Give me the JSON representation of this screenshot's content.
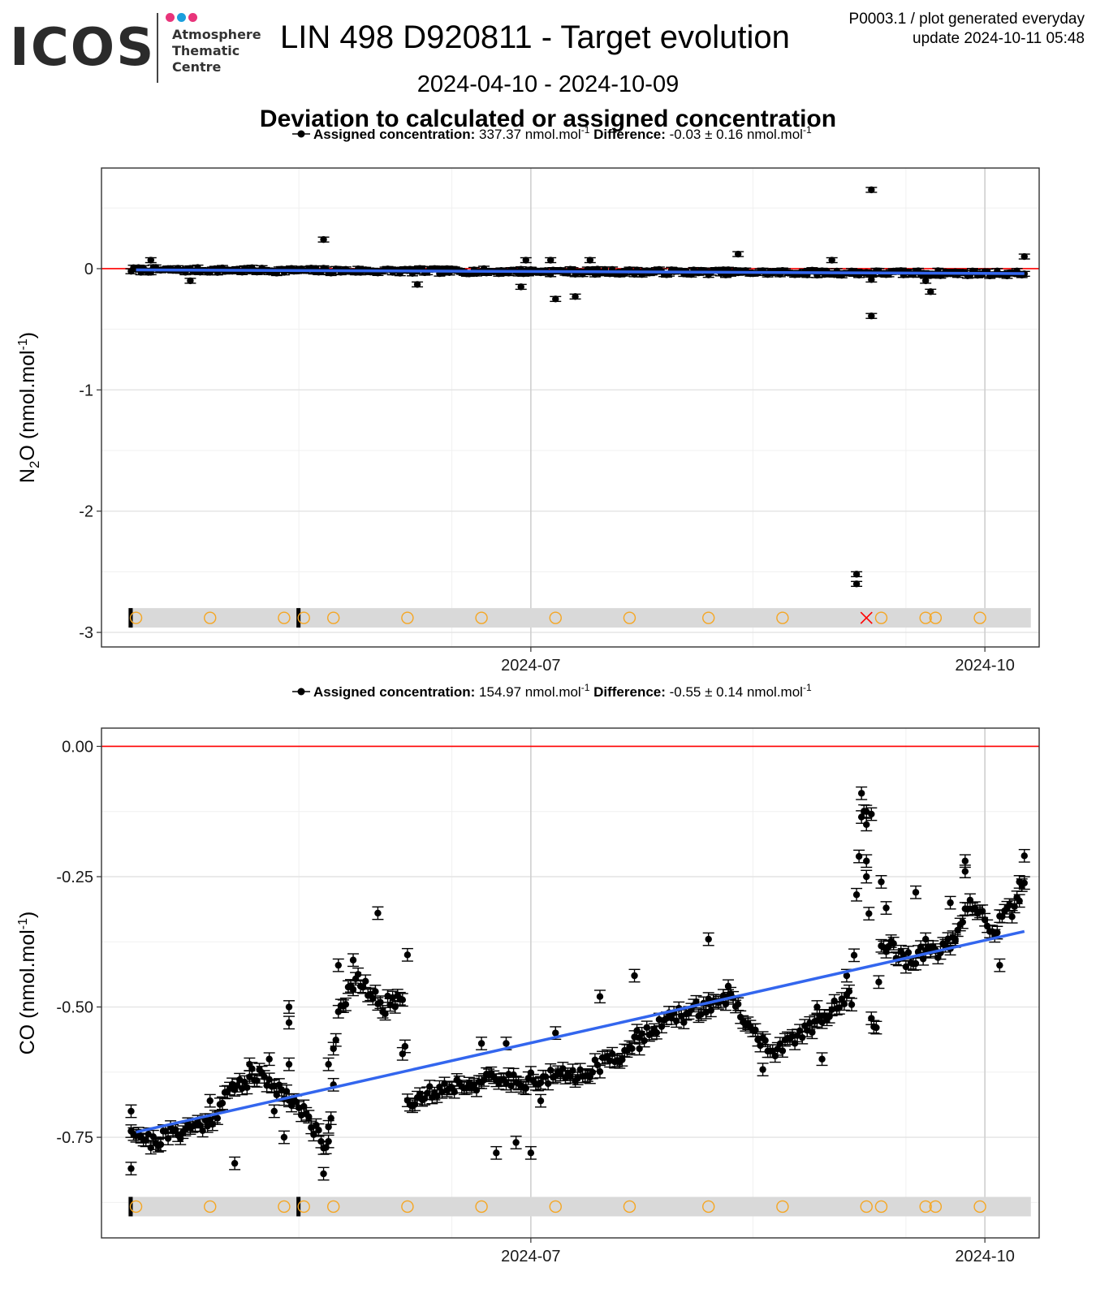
{
  "header": {
    "logo_word": "ICOS",
    "logo_lines": [
      "Atmosphere",
      "Thematic",
      "Centre"
    ],
    "logo_dot_colors": [
      "#e8347a",
      "#1a9fdd",
      "#e8347a"
    ],
    "title": "LIN 498 D920811 - Target evolution",
    "corner_line1": "P0003.1 / plot generated everyday",
    "corner_line2": "update  2024-10-11 05:48",
    "date_range": "2024-04-10 - 2024-10-09",
    "subtitle": "Deviation to calculated or assigned concentration"
  },
  "colors": {
    "points": "#000000",
    "zero_line": "#ff0000",
    "trend_line": "#3366ee",
    "cal_circle": "#f5a623",
    "flag_cross": "#ff0000",
    "band": "#d9d9d9"
  },
  "chart_data": [
    {
      "type": "scatter",
      "ylabel": "N2O (nmol.mol-1)",
      "legend_assigned_label": "Assigned concentration:",
      "legend_assigned_value": "337.37 nmol.mol",
      "legend_diff_label": "Difference:",
      "legend_diff_value": "-0.03 ± 0.16 nmol.mol",
      "legend_sup": "-1",
      "xlim": [
        "2024-04-05",
        "2024-10-12"
      ],
      "ylim": [
        -3.12,
        0.83
      ],
      "yticks": [
        0,
        -1,
        -2,
        -3
      ],
      "yticklabels": [
        "0",
        "-1",
        "-2",
        "-3"
      ],
      "xticks": [
        "2024-07-01",
        "2024-10-01"
      ],
      "xticklabels": [
        "2024-07",
        "2024-10"
      ],
      "grid": true,
      "trend": {
        "x0": "2024-04-12",
        "y0": -0.01,
        "x1": "2024-10-09",
        "y1": -0.04
      },
      "series_seed": 7,
      "series_base": {
        "start": -0.01,
        "end": -0.04,
        "noise": 0.022,
        "err": 0.012
      },
      "outliers": [
        [
          "2024-04-15",
          0.07
        ],
        [
          "2024-04-23",
          -0.1
        ],
        [
          "2024-05-20",
          0.24
        ],
        [
          "2024-06-08",
          -0.13
        ],
        [
          "2024-06-29",
          -0.15
        ],
        [
          "2024-06-30",
          0.07
        ],
        [
          "2024-07-05",
          0.07
        ],
        [
          "2024-07-06",
          -0.25
        ],
        [
          "2024-07-10",
          -0.23
        ],
        [
          "2024-07-13",
          0.07
        ],
        [
          "2024-08-12",
          0.12
        ],
        [
          "2024-08-31",
          0.07
        ],
        [
          "2024-09-05",
          -2.52
        ],
        [
          "2024-09-05",
          -2.6
        ],
        [
          "2024-09-08",
          -0.09
        ],
        [
          "2024-09-08",
          0.65
        ],
        [
          "2024-09-08",
          -0.39
        ],
        [
          "2024-09-20",
          -0.19
        ],
        [
          "2024-09-19",
          -0.1
        ],
        [
          "2024-10-09",
          0.1
        ]
      ],
      "marker_y": -2.88,
      "cal_dates": [
        "2024-04-12",
        "2024-04-27",
        "2024-05-12",
        "2024-05-16",
        "2024-05-22",
        "2024-06-06",
        "2024-06-21",
        "2024-07-06",
        "2024-07-21",
        "2024-08-06",
        "2024-08-21",
        "2024-09-10",
        "2024-09-19",
        "2024-09-21",
        "2024-10-00"
      ],
      "black_marks": [
        "2024-04-11",
        "2024-05-15"
      ],
      "cross_dates": [
        "2024-09-07"
      ]
    },
    {
      "type": "scatter",
      "ylabel": "CO (nmol.mol-1)",
      "legend_assigned_label": "Assigned concentration:",
      "legend_assigned_value": "154.97 nmol.mol",
      "legend_diff_label": "Difference:",
      "legend_diff_value": "-0.55 ± 0.14 nmol.mol",
      "legend_sup": "-1",
      "xlim": [
        "2024-04-05",
        "2024-10-12"
      ],
      "ylim": [
        -0.943,
        0.035
      ],
      "yticks": [
        0,
        -0.25,
        -0.5,
        -0.75
      ],
      "yticklabels": [
        "0.00",
        "-0.25",
        "-0.50",
        "-0.75"
      ],
      "xticks": [
        "2024-07-01",
        "2024-10-01"
      ],
      "xticklabels": [
        "2024-07",
        "2024-10"
      ],
      "grid": true,
      "trend": {
        "x0": "2024-04-12",
        "y0": -0.74,
        "x1": "2024-10-09",
        "y1": -0.355
      },
      "series_seed": 21,
      "anchors": [
        [
          "2024-04-11",
          -0.73
        ],
        [
          "2024-04-15",
          -0.76
        ],
        [
          "2024-04-20",
          -0.74
        ],
        [
          "2024-04-27",
          -0.72
        ],
        [
          "2024-05-01",
          -0.66
        ],
        [
          "2024-05-06",
          -0.63
        ],
        [
          "2024-05-10",
          -0.65
        ],
        [
          "2024-05-14",
          -0.68
        ],
        [
          "2024-05-18",
          -0.73
        ],
        [
          "2024-05-21",
          -0.77
        ],
        [
          "2024-05-23",
          -0.5
        ],
        [
          "2024-05-27",
          -0.45
        ],
        [
          "2024-06-01",
          -0.5
        ],
        [
          "2024-06-05",
          -0.48
        ],
        [
          "2024-06-06",
          -0.68
        ],
        [
          "2024-06-15",
          -0.65
        ],
        [
          "2024-06-25",
          -0.64
        ],
        [
          "2024-07-01",
          -0.64
        ],
        [
          "2024-07-10",
          -0.63
        ],
        [
          "2024-07-18",
          -0.6
        ],
        [
          "2024-07-25",
          -0.54
        ],
        [
          "2024-08-05",
          -0.5
        ],
        [
          "2024-08-10",
          -0.48
        ],
        [
          "2024-08-15",
          -0.55
        ],
        [
          "2024-08-20",
          -0.59
        ],
        [
          "2024-08-26",
          -0.54
        ],
        [
          "2024-09-01",
          -0.5
        ],
        [
          "2024-09-04",
          -0.48
        ],
        [
          "2024-09-06",
          -0.12
        ],
        [
          "2024-09-07",
          -0.13
        ],
        [
          "2024-09-08",
          -0.52
        ],
        [
          "2024-09-09",
          -0.55
        ],
        [
          "2024-09-10",
          -0.37
        ],
        [
          "2024-09-15",
          -0.41
        ],
        [
          "2024-09-25",
          -0.38
        ],
        [
          "2024-09-28",
          -0.3
        ],
        [
          "2024-10-03",
          -0.35
        ],
        [
          "2024-10-07",
          -0.31
        ],
        [
          "2024-10-09",
          -0.27
        ]
      ],
      "series_noise": 0.016,
      "series_err": 0.012,
      "outliers": [
        [
          "2024-04-11",
          -0.7
        ],
        [
          "2024-04-11",
          -0.81
        ],
        [
          "2024-04-27",
          -0.68
        ],
        [
          "2024-05-02",
          -0.8
        ],
        [
          "2024-05-05",
          -0.61
        ],
        [
          "2024-05-09",
          -0.6
        ],
        [
          "2024-05-10",
          -0.7
        ],
        [
          "2024-05-12",
          -0.75
        ],
        [
          "2024-05-13",
          -0.5
        ],
        [
          "2024-05-13",
          -0.53
        ],
        [
          "2024-05-13",
          -0.61
        ],
        [
          "2024-05-20",
          -0.82
        ],
        [
          "2024-05-21",
          -0.73
        ],
        [
          "2024-05-21",
          -0.61
        ],
        [
          "2024-05-22",
          -0.58
        ],
        [
          "2024-05-23",
          -0.42
        ],
        [
          "2024-05-26",
          -0.41
        ],
        [
          "2024-05-31",
          -0.32
        ],
        [
          "2024-06-06",
          -0.4
        ],
        [
          "2024-06-05",
          -0.59
        ],
        [
          "2024-06-21",
          -0.57
        ],
        [
          "2024-06-24",
          -0.78
        ],
        [
          "2024-06-26",
          -0.57
        ],
        [
          "2024-06-28",
          -0.76
        ],
        [
          "2024-07-01",
          -0.78
        ],
        [
          "2024-07-03",
          -0.68
        ],
        [
          "2024-07-06",
          -0.55
        ],
        [
          "2024-07-15",
          -0.48
        ],
        [
          "2024-07-22",
          -0.44
        ],
        [
          "2024-07-23",
          -0.58
        ],
        [
          "2024-08-06",
          -0.37
        ],
        [
          "2024-08-10",
          -0.46
        ],
        [
          "2024-08-17",
          -0.62
        ],
        [
          "2024-08-28",
          -0.5
        ],
        [
          "2024-08-29",
          -0.6
        ],
        [
          "2024-09-03",
          -0.44
        ],
        [
          "2024-09-06",
          -0.09
        ],
        [
          "2024-09-07",
          -0.15
        ],
        [
          "2024-09-07",
          -0.22
        ],
        [
          "2024-09-07",
          -0.25
        ],
        [
          "2024-09-08",
          -0.13
        ],
        [
          "2024-09-10",
          -0.26
        ],
        [
          "2024-09-11",
          -0.31
        ],
        [
          "2024-09-17",
          -0.28
        ],
        [
          "2024-09-19",
          -0.37
        ],
        [
          "2024-09-24",
          -0.3
        ],
        [
          "2024-09-25",
          -0.37
        ],
        [
          "2024-09-27",
          -0.22
        ],
        [
          "2024-09-27",
          -0.24
        ],
        [
          "2024-10-04",
          -0.42
        ],
        [
          "2024-10-08",
          -0.26
        ],
        [
          "2024-10-09",
          -0.21
        ]
      ],
      "marker_y": -0.883,
      "cal_dates": [
        "2024-04-12",
        "2024-04-27",
        "2024-05-12",
        "2024-05-16",
        "2024-05-22",
        "2024-06-06",
        "2024-06-21",
        "2024-07-06",
        "2024-07-21",
        "2024-08-06",
        "2024-08-21",
        "2024-09-07",
        "2024-09-10",
        "2024-09-19",
        "2024-09-21",
        "2024-10-00"
      ],
      "black_marks": [
        "2024-04-11",
        "2024-05-15"
      ],
      "cross_dates": []
    }
  ]
}
